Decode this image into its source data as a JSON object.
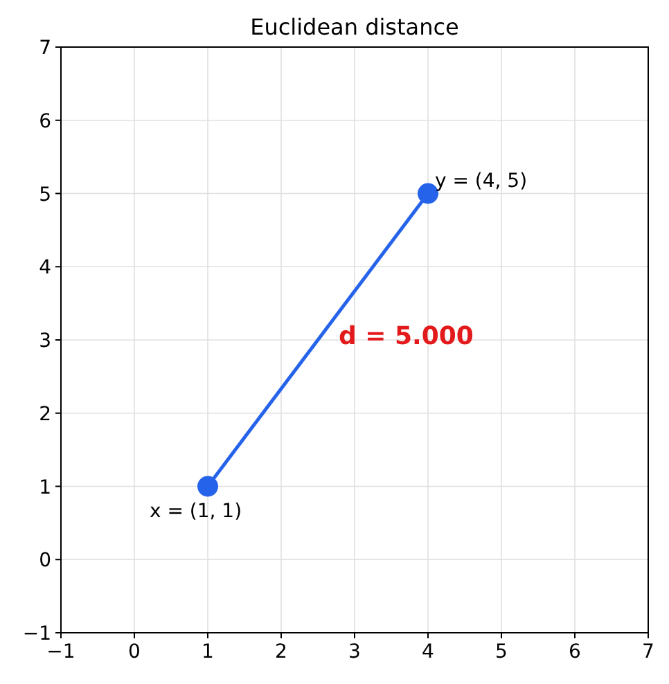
{
  "chart_data": {
    "type": "line",
    "title": "Euclidean distance",
    "x": [
      1,
      4
    ],
    "series": [
      {
        "color": "#2563eb",
        "values": [
          1,
          5
        ]
      }
    ],
    "marker": "circle",
    "line_style": "solid",
    "grid": true,
    "xlim": [
      -1,
      7
    ],
    "xticks": [
      -1,
      0,
      1,
      2,
      3,
      4,
      5,
      6,
      7
    ],
    "ylim": [
      -1,
      7
    ],
    "yticks": [
      -1,
      0,
      1,
      2,
      3,
      4,
      5,
      6,
      7
    ],
    "annotations": [
      {
        "text": "x = (1, 1)",
        "x": 1,
        "y": 1
      },
      {
        "text": "y = (4, 5)",
        "x": 4,
        "y": 5
      },
      "d = 5.000"
    ]
  }
}
